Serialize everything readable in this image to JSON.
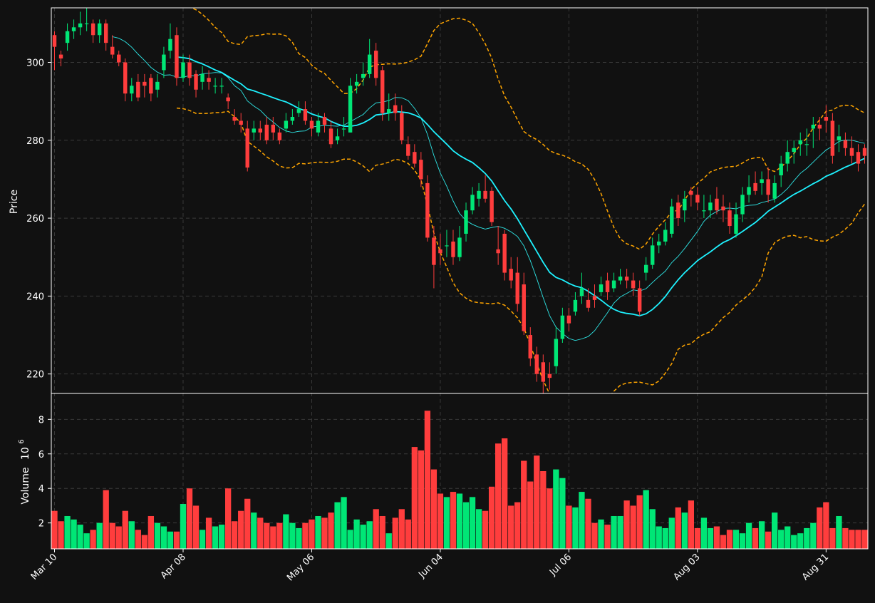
{
  "chart_data": {
    "type": "candlestick",
    "title": "",
    "colors": {
      "background": "#111111",
      "up": "#00e676",
      "down": "#ff3d3d",
      "ma_fast": "#2ee6e6",
      "ma_slow": "#1ef2ff",
      "bands": "#ffa500",
      "grid": "#3a3a3a",
      "text": "#ffffff"
    },
    "grid": true,
    "price_panel": {
      "ylabel": "Price",
      "ylim": [
        215,
        314
      ],
      "yticks": [
        220,
        240,
        260,
        280,
        300
      ],
      "ytick_labels": [
        "220",
        "240",
        "260",
        "280",
        "300"
      ]
    },
    "volume_panel": {
      "ylabel": "Volume",
      "ylabel_exponent": "10",
      "ylabel_power": "6",
      "ylim": [
        0.5,
        9.5
      ],
      "yticks": [
        2,
        4,
        6,
        8
      ],
      "ytick_labels": [
        "2",
        "4",
        "6",
        "8"
      ],
      "unit_scale": 1000000
    },
    "x_axis": {
      "tick_index": [
        0,
        20,
        40,
        60,
        80,
        100,
        120
      ],
      "tick_labels": [
        "Mar 10",
        "Apr 08",
        "May 06",
        "Jun 04",
        "Jul 06",
        "Aug 03",
        "Aug 31"
      ],
      "n_bars": 127
    },
    "close": [
      304.0,
      301.0,
      308.0,
      309.0,
      310.0,
      310.0,
      307.0,
      310.0,
      305.0,
      302.0,
      300.0,
      292.0,
      294.0,
      291.0,
      294.0,
      292.0,
      295.0,
      302.0,
      306.0,
      296.0,
      300.0,
      296.0,
      293.0,
      297.0,
      295.0,
      294.0,
      294.0,
      290.0,
      285.0,
      284.0,
      273.0,
      283.0,
      282.0,
      280.0,
      282.0,
      280.0,
      285.0,
      286.0,
      288.0,
      285.0,
      283.0,
      285.0,
      284.0,
      279.0,
      281.0,
      283.0,
      294.0,
      295.0,
      297.0,
      302.0,
      296.0,
      287.0,
      288.0,
      287.0,
      280.0,
      276.0,
      274.0,
      270.0,
      255.0,
      248.0,
      251.0,
      253.0,
      250.0,
      255.0,
      262.0,
      266.0,
      267.0,
      265.0,
      259.0,
      251.0,
      246.0,
      244.0,
      238.0,
      231.0,
      224.0,
      220.0,
      218.0,
      219.0,
      229.0,
      235.0,
      233.0,
      239.0,
      242.0,
      237.0,
      239.0,
      243.0,
      241.0,
      244.0,
      245.0,
      244.0,
      242.0,
      236.0,
      248.0,
      253.0,
      254.0,
      257.0,
      263.0,
      260.0,
      265.0,
      266.0,
      264.0,
      262.0,
      264.0,
      262.0,
      262.0,
      258.0,
      261.0,
      266.0,
      268.0,
      267.0,
      270.0,
      266.0,
      269.0,
      274.0,
      277.0,
      278.0,
      280.0,
      279.0,
      284.0,
      283.0,
      285.0,
      276.0,
      281.0,
      278.0,
      276.0,
      274.0,
      276.0
    ],
    "open": [
      307.0,
      302.0,
      305.0,
      308.0,
      309.0,
      310.0,
      310.0,
      307.0,
      310.0,
      304.0,
      302.0,
      300.0,
      292.0,
      295.0,
      295.0,
      296.0,
      293.0,
      298.0,
      303.0,
      307.0,
      296.0,
      300.0,
      297.0,
      295.0,
      296.0,
      294.0,
      294.0,
      291.0,
      286.0,
      285.0,
      283.0,
      282.0,
      283.0,
      284.0,
      284.0,
      282.0,
      283.0,
      285.0,
      287.0,
      288.0,
      285.0,
      282.0,
      286.0,
      283.0,
      280.0,
      283.0,
      282.0,
      294.0,
      296.0,
      297.0,
      303.0,
      298.0,
      287.0,
      289.0,
      287.0,
      279.0,
      277.0,
      275.0,
      269.0,
      255.0,
      252.0,
      253.0,
      254.0,
      250.0,
      256.0,
      262.0,
      265.0,
      267.0,
      267.0,
      252.0,
      256.0,
      247.0,
      246.0,
      243.0,
      230.0,
      225.0,
      223.0,
      220.0,
      222.0,
      229.0,
      235.0,
      236.0,
      240.0,
      239.0,
      240.0,
      241.0,
      244.0,
      242.0,
      244.0,
      245.0,
      244.0,
      242.0,
      246.0,
      248.0,
      253.0,
      254.0,
      256.0,
      264.0,
      262.0,
      267.0,
      266.0,
      262.0,
      262.0,
      265.0,
      263.0,
      262.0,
      256.0,
      261.0,
      266.0,
      269.0,
      269.0,
      270.0,
      265.0,
      271.0,
      274.0,
      277.0,
      279.0,
      279.0,
      283.0,
      284.0,
      286.0,
      285.0,
      280.0,
      280.0,
      278.0,
      277.0,
      278.0
    ],
    "high": [
      308.0,
      303.0,
      310.0,
      311.0,
      313.0,
      314.0,
      311.0,
      311.0,
      311.0,
      307.0,
      303.0,
      301.0,
      296.0,
      297.0,
      297.0,
      297.0,
      297.0,
      304.0,
      310.0,
      309.0,
      302.0,
      302.0,
      298.0,
      299.0,
      298.0,
      296.0,
      296.0,
      292.0,
      288.0,
      287.0,
      285.0,
      285.0,
      285.0,
      286.0,
      286.0,
      283.0,
      287.0,
      288.0,
      290.0,
      290.0,
      286.0,
      287.0,
      287.0,
      285.0,
      283.0,
      286.0,
      296.0,
      297.0,
      300.0,
      306.0,
      305.0,
      299.0,
      292.0,
      292.0,
      289.0,
      281.0,
      279.0,
      277.0,
      271.0,
      258.0,
      256.0,
      257.0,
      257.0,
      258.0,
      264.0,
      268.0,
      269.0,
      271.0,
      268.0,
      258.0,
      257.0,
      250.0,
      250.0,
      246.0,
      232.0,
      227.0,
      225.0,
      223.0,
      232.0,
      237.0,
      237.0,
      241.0,
      246.0,
      242.0,
      243.0,
      245.0,
      246.0,
      246.0,
      247.0,
      247.0,
      246.0,
      244.0,
      250.0,
      255.0,
      256.0,
      259.0,
      265.0,
      266.0,
      267.0,
      268.0,
      268.0,
      266.0,
      266.0,
      268.0,
      266.0,
      264.0,
      264.0,
      268.0,
      271.0,
      272.0,
      272.0,
      273.0,
      271.0,
      276.0,
      280.0,
      280.0,
      282.0,
      283.0,
      286.0,
      286.0,
      289.0,
      287.0,
      284.0,
      282.0,
      281.0,
      279.0,
      279.0
    ],
    "low": [
      298.0,
      299.0,
      303.0,
      306.0,
      307.0,
      308.0,
      305.0,
      305.0,
      303.0,
      301.0,
      299.0,
      290.0,
      290.0,
      290.0,
      291.0,
      290.0,
      291.0,
      296.0,
      301.0,
      294.0,
      295.0,
      294.0,
      291.0,
      293.0,
      293.0,
      292.0,
      292.0,
      288.0,
      284.0,
      282.0,
      272.0,
      280.0,
      280.0,
      279.0,
      280.0,
      279.0,
      282.0,
      284.0,
      286.0,
      284.0,
      281.0,
      281.0,
      282.0,
      278.0,
      279.0,
      281.0,
      282.0,
      292.0,
      294.0,
      296.0,
      294.0,
      285.0,
      285.0,
      285.0,
      279.0,
      275.0,
      273.0,
      268.0,
      254.0,
      242.0,
      248.0,
      250.0,
      248.0,
      249.0,
      254.0,
      261.0,
      263.0,
      264.0,
      258.0,
      248.0,
      244.0,
      242.0,
      236.0,
      230.0,
      222.0,
      218.0,
      215.0,
      216.0,
      220.0,
      228.0,
      231.0,
      235.0,
      238.0,
      236.0,
      237.0,
      240.0,
      239.0,
      241.0,
      243.0,
      242.0,
      240.0,
      235.0,
      244.0,
      247.0,
      251.0,
      253.0,
      255.0,
      258.0,
      259.0,
      263.0,
      262.0,
      260.0,
      260.0,
      261.0,
      259.0,
      256.0,
      255.0,
      259.0,
      264.0,
      266.0,
      266.0,
      264.0,
      264.0,
      268.0,
      272.0,
      274.0,
      276.0,
      276.0,
      278.0,
      280.0,
      282.0,
      274.0,
      277.0,
      276.0,
      274.0,
      272.0,
      274.0
    ],
    "volume": [
      2.7,
      2.1,
      2.4,
      2.2,
      1.9,
      1.4,
      1.6,
      2.0,
      3.9,
      2.0,
      1.8,
      2.7,
      2.1,
      1.6,
      1.3,
      2.4,
      2.0,
      1.8,
      1.5,
      1.5,
      3.1,
      4.0,
      3.0,
      1.6,
      2.3,
      1.8,
      1.9,
      4.0,
      2.1,
      2.7,
      3.4,
      2.6,
      2.3,
      2.0,
      1.8,
      2.0,
      2.5,
      2.0,
      1.7,
      2.0,
      2.2,
      2.4,
      2.3,
      2.6,
      3.2,
      3.5,
      1.6,
      2.2,
      1.9,
      2.1,
      2.8,
      2.4,
      1.4,
      2.3,
      2.8,
      2.2,
      6.4,
      6.2,
      8.5,
      5.1,
      3.7,
      3.5,
      3.8,
      3.7,
      3.2,
      3.5,
      2.8,
      2.7,
      4.1,
      6.6,
      6.9,
      3.0,
      3.2,
      5.6,
      4.4,
      5.9,
      5.0,
      4.0,
      5.1,
      4.6,
      3.0,
      2.9,
      3.8,
      3.4,
      2.0,
      2.2,
      1.9,
      2.4,
      2.4,
      3.3,
      3.0,
      3.6,
      3.9,
      2.8,
      1.8,
      1.7,
      2.3,
      2.9,
      2.6,
      3.3,
      1.7,
      2.3,
      1.7,
      1.8,
      1.3,
      1.6,
      1.6,
      1.4,
      2.0,
      1.7,
      2.1,
      1.5,
      2.6,
      1.6,
      1.8,
      1.3,
      1.4,
      1.7,
      2.0,
      2.9,
      3.2,
      1.7,
      2.4,
      1.7,
      1.6,
      1.6,
      1.6
    ],
    "ma_fast_window": 10,
    "ma_slow_window": 20,
    "bollinger_std": 2.0
  }
}
